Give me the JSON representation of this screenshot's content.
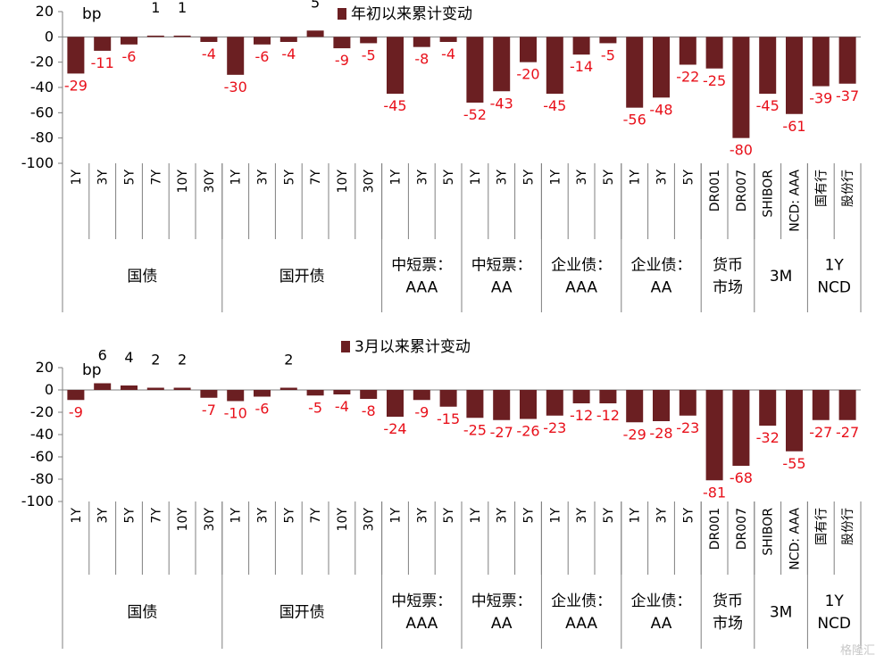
{
  "chart_data": [
    {
      "type": "bar",
      "legend": "年初以来累计变动",
      "unit": "bp",
      "ylim": [
        -100,
        20
      ],
      "yticks": [
        20,
        0,
        -20,
        -40,
        -60,
        -80,
        -100
      ],
      "categories": [
        "1Y",
        "3Y",
        "5Y",
        "7Y",
        "10Y",
        "30Y",
        "1Y",
        "3Y",
        "5Y",
        "7Y",
        "10Y",
        "30Y",
        "1Y",
        "3Y",
        "5Y",
        "1Y",
        "3Y",
        "5Y",
        "1Y",
        "3Y",
        "5Y",
        "1Y",
        "3Y",
        "5Y",
        "DR001",
        "DR007",
        "SHIBOR",
        "NCD: AAA",
        "国有行",
        "股份行"
      ],
      "values": [
        -29,
        -11,
        -6,
        1,
        1,
        -4,
        -30,
        -6,
        -4,
        5,
        -9,
        -5,
        -45,
        -8,
        -4,
        -52,
        -43,
        -20,
        -45,
        -14,
        -5,
        -56,
        -48,
        -22,
        -25,
        -80,
        -45,
        -61,
        -39,
        -37
      ],
      "groups": [
        {
          "label": [
            "国债"
          ],
          "count": 6
        },
        {
          "label": [
            "国开债"
          ],
          "count": 6
        },
        {
          "label": [
            "中短票：",
            "AAA"
          ],
          "count": 3
        },
        {
          "label": [
            "中短票：",
            "AA"
          ],
          "count": 3
        },
        {
          "label": [
            "企业债：",
            "AAA"
          ],
          "count": 3
        },
        {
          "label": [
            "企业债：",
            "AA"
          ],
          "count": 3
        },
        {
          "label": [
            "货币",
            "市场"
          ],
          "count": 2
        },
        {
          "label": [
            "3M"
          ],
          "count": 2
        },
        {
          "label": [
            "1Y",
            "NCD"
          ],
          "count": 2
        }
      ]
    },
    {
      "type": "bar",
      "legend": "3月以来累计变动",
      "unit": "bp",
      "ylim": [
        -100,
        20
      ],
      "yticks": [
        20,
        0,
        -20,
        -40,
        -60,
        -80,
        -100
      ],
      "categories": [
        "1Y",
        "3Y",
        "5Y",
        "7Y",
        "10Y",
        "30Y",
        "1Y",
        "3Y",
        "5Y",
        "7Y",
        "10Y",
        "30Y",
        "1Y",
        "3Y",
        "5Y",
        "1Y",
        "3Y",
        "5Y",
        "1Y",
        "3Y",
        "5Y",
        "1Y",
        "3Y",
        "5Y",
        "DR001",
        "DR007",
        "SHIBOR",
        "NCD: AAA",
        "国有行",
        "股份行"
      ],
      "values": [
        -9,
        6,
        4,
        2,
        2,
        -7,
        -10,
        -6,
        2,
        -5,
        -4,
        -8,
        -24,
        -9,
        -15,
        -25,
        -27,
        -26,
        -23,
        -12,
        -12,
        -29,
        -28,
        -23,
        -81,
        -68,
        -32,
        -55,
        -27,
        -27
      ],
      "groups": [
        {
          "label": [
            "国债"
          ],
          "count": 6
        },
        {
          "label": [
            "国开债"
          ],
          "count": 6
        },
        {
          "label": [
            "中短票：",
            "AAA"
          ],
          "count": 3
        },
        {
          "label": [
            "中短票：",
            "AA"
          ],
          "count": 3
        },
        {
          "label": [
            "企业债：",
            "AAA"
          ],
          "count": 3
        },
        {
          "label": [
            "企业债：",
            "AA"
          ],
          "count": 3
        },
        {
          "label": [
            "货币",
            "市场"
          ],
          "count": 2
        },
        {
          "label": [
            "3M"
          ],
          "count": 2
        },
        {
          "label": [
            "1Y",
            "NCD"
          ],
          "count": 2
        }
      ]
    }
  ],
  "colors": {
    "bar": "#6b1f22",
    "negative_label": "#e8101a",
    "axis": "#7f7f7f"
  },
  "watermark": "格隆汇"
}
